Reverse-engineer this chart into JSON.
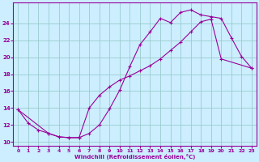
{
  "xlabel": "Windchill (Refroidissement éolien,°C)",
  "background_color": "#cceeff",
  "line_color": "#990099",
  "grid_color": "#99cccc",
  "xlim": [
    -0.5,
    23.5
  ],
  "ylim": [
    9.5,
    26.5
  ],
  "xticks": [
    0,
    1,
    2,
    3,
    4,
    5,
    6,
    7,
    8,
    9,
    10,
    11,
    12,
    13,
    14,
    15,
    16,
    17,
    18,
    19,
    20,
    21,
    22,
    23
  ],
  "yticks": [
    10,
    12,
    14,
    16,
    18,
    20,
    22,
    24
  ],
  "curve1_x": [
    0,
    1,
    2,
    3,
    4,
    5,
    6,
    7,
    8,
    9,
    10,
    11,
    12,
    13,
    14,
    15,
    16,
    17,
    18,
    19,
    20,
    21,
    22,
    23
  ],
  "curve1_y": [
    13.8,
    12.2,
    11.4,
    11.0,
    10.6,
    10.5,
    10.5,
    11.0,
    12.0,
    13.9,
    16.1,
    18.9,
    21.5,
    23.0,
    24.6,
    24.1,
    25.3,
    25.6,
    25.0,
    24.8,
    24.6,
    22.3,
    20.1,
    18.7
  ],
  "curve2_x": [
    0,
    3,
    4,
    5,
    6,
    7,
    8,
    9,
    10,
    11,
    12,
    13,
    14,
    15,
    16,
    17,
    18,
    19,
    20,
    23
  ],
  "curve2_y": [
    13.8,
    11.0,
    10.6,
    10.5,
    10.5,
    14.0,
    15.5,
    16.5,
    17.3,
    17.8,
    18.4,
    19.0,
    19.8,
    20.8,
    21.8,
    23.0,
    24.2,
    24.5,
    19.8,
    18.7
  ]
}
